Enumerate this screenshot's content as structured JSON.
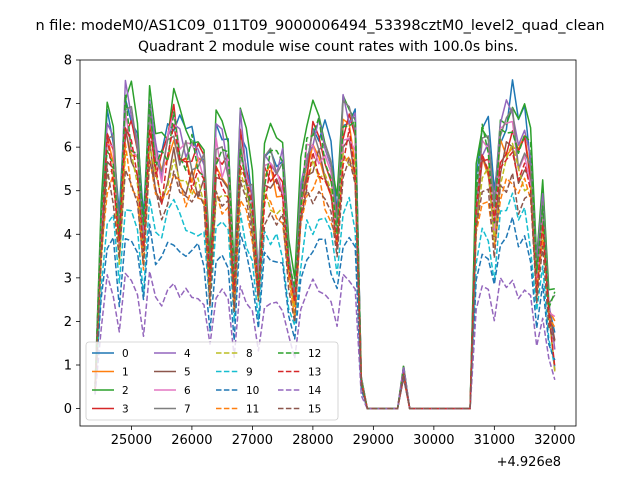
{
  "suptitle": "n file: modeM0/AS1C09_011T09_9000006494_53398cztM0_level2_quad_clean",
  "chart_data": {
    "type": "line",
    "title": "Quadrant 2 module wise count rates with 100.0s bins.",
    "xlabel": "",
    "ylabel": "",
    "x_offset_label": "+4.926e8",
    "xlim": [
      24150,
      32350
    ],
    "ylim": [
      -0.4,
      8.0
    ],
    "x_ticks": [
      25000,
      26000,
      27000,
      28000,
      29000,
      30000,
      31000,
      32000
    ],
    "x_tick_labels": [
      "25000",
      "26000",
      "27000",
      "28000",
      "29000",
      "30000",
      "31000",
      "32000"
    ],
    "y_ticks": [
      0,
      1,
      2,
      3,
      4,
      5,
      6,
      7,
      8
    ],
    "y_tick_labels": [
      "0",
      "1",
      "2",
      "3",
      "4",
      "5",
      "6",
      "7",
      "8"
    ],
    "grid": false,
    "legend_position": "lower-left",
    "legend_columns": 4,
    "gap_x": [
      29600,
      30600
    ],
    "x": [
      24400,
      24500,
      24600,
      24700,
      24800,
      24900,
      25000,
      25100,
      25200,
      25300,
      25400,
      25500,
      25600,
      25700,
      25800,
      25900,
      26000,
      26100,
      26200,
      26300,
      26400,
      26500,
      26600,
      26700,
      26800,
      26900,
      27000,
      27100,
      27200,
      27300,
      27400,
      27500,
      27600,
      27700,
      27800,
      27900,
      28000,
      28100,
      28200,
      28300,
      28400,
      28500,
      28600,
      28700,
      28800,
      28900,
      29000,
      29100,
      29200,
      29300,
      29400,
      29500,
      29600,
      29700,
      29800,
      29900,
      30000,
      30100,
      30200,
      30300,
      30400,
      30500,
      30600,
      30700,
      30800,
      30900,
      31000,
      31100,
      31200,
      31300,
      31400,
      31500,
      31600,
      31700,
      31800,
      31900,
      32000
    ],
    "base_profile": [
      0.2,
      0.6,
      0.93,
      0.88,
      0.58,
      1.0,
      0.93,
      0.88,
      0.57,
      0.95,
      0.84,
      0.8,
      0.88,
      0.96,
      0.88,
      0.86,
      0.85,
      0.84,
      0.83,
      0.45,
      0.86,
      0.84,
      0.82,
      0.4,
      0.9,
      0.8,
      0.7,
      0.42,
      0.8,
      0.82,
      0.8,
      0.78,
      0.5,
      0.38,
      0.72,
      0.84,
      0.9,
      0.9,
      0.86,
      0.8,
      0.62,
      0.95,
      0.96,
      0.9,
      0.1,
      0.0,
      0.0,
      0.0,
      0.0,
      0.0,
      0.0,
      0.0,
      0.0,
      0.7,
      0.88,
      0.87,
      0.65,
      0.9,
      0.93,
      0.98,
      0.86,
      0.9,
      0.82,
      0.45,
      0.7,
      0.35
    ],
    "base_x_start": 24400,
    "series": [
      {
        "name": "0",
        "color": "#1f77b4",
        "dash": "solid",
        "level": 7.2,
        "offset": 0
      },
      {
        "name": "1",
        "color": "#ff7f0e",
        "dash": "solid",
        "level": 6.6,
        "offset": 1
      },
      {
        "name": "2",
        "color": "#2ca02c",
        "dash": "solid",
        "level": 7.5,
        "offset": 2
      },
      {
        "name": "3",
        "color": "#d62728",
        "dash": "solid",
        "level": 6.8,
        "offset": 3
      },
      {
        "name": "4",
        "color": "#9467bd",
        "dash": "solid",
        "level": 7.1,
        "offset": 4
      },
      {
        "name": "5",
        "color": "#8c564b",
        "dash": "solid",
        "level": 6.2,
        "offset": 5
      },
      {
        "name": "6",
        "color": "#e377c2",
        "dash": "solid",
        "level": 6.7,
        "offset": 6
      },
      {
        "name": "7",
        "color": "#7f7f7f",
        "dash": "solid",
        "level": 6.9,
        "offset": 7
      },
      {
        "name": "8",
        "color": "#bcbd22",
        "dash": "dashed",
        "level": 6.0,
        "offset": 8
      },
      {
        "name": "9",
        "color": "#17becf",
        "dash": "dashed",
        "level": 4.8,
        "offset": 9
      },
      {
        "name": "10",
        "color": "#1f77b4",
        "dash": "dashed",
        "level": 4.2,
        "offset": 10
      },
      {
        "name": "11",
        "color": "#ff7f0e",
        "dash": "dashed",
        "level": 5.7,
        "offset": 11
      },
      {
        "name": "12",
        "color": "#2ca02c",
        "dash": "dashed",
        "level": 6.9,
        "offset": 12
      },
      {
        "name": "13",
        "color": "#d62728",
        "dash": "dashed",
        "level": 6.3,
        "offset": 13
      },
      {
        "name": "14",
        "color": "#9467bd",
        "dash": "dashed",
        "level": 3.1,
        "offset": 14
      },
      {
        "name": "15",
        "color": "#8c564b",
        "dash": "dashed",
        "level": 5.6,
        "offset": 15
      }
    ]
  }
}
